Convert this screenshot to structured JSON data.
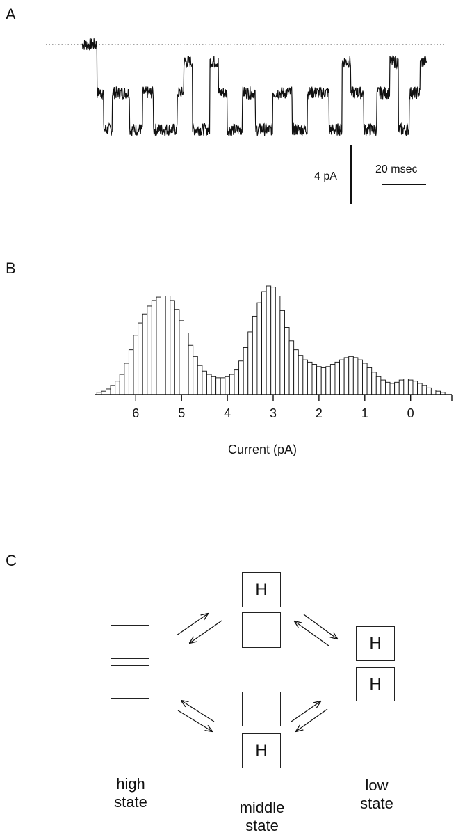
{
  "panels": {
    "a": {
      "label": "A",
      "scalebar_current": "4 pA",
      "scalebar_time": "20 msec"
    },
    "b": {
      "label": "B"
    },
    "c": {
      "label": "C"
    }
  },
  "trace": {
    "levels_pA": [
      0,
      -4.2,
      -7.4
    ],
    "sequence": [
      {
        "level": 0,
        "duration_ms": 7
      },
      {
        "level": -4.2,
        "duration_ms": 3
      },
      {
        "level": -7.4,
        "duration_ms": 4
      },
      {
        "level": -4.2,
        "duration_ms": 8
      },
      {
        "level": -7.4,
        "duration_ms": 6
      },
      {
        "level": -4.2,
        "duration_ms": 5
      },
      {
        "level": -7.4,
        "duration_ms": 11
      },
      {
        "level": -4.2,
        "duration_ms": 3
      },
      {
        "level": -1.5,
        "duration_ms": 4
      },
      {
        "level": -7.4,
        "duration_ms": 8
      },
      {
        "level": -1.5,
        "duration_ms": 4
      },
      {
        "level": -4.2,
        "duration_ms": 4
      },
      {
        "level": -7.4,
        "duration_ms": 7
      },
      {
        "level": -4.2,
        "duration_ms": 6
      },
      {
        "level": -7.4,
        "duration_ms": 8
      },
      {
        "level": -4.2,
        "duration_ms": 9
      },
      {
        "level": -7.4,
        "duration_ms": 7
      },
      {
        "level": -4.2,
        "duration_ms": 10
      },
      {
        "level": -7.4,
        "duration_ms": 6
      },
      {
        "level": -1.5,
        "duration_ms": 4
      },
      {
        "level": -4.2,
        "duration_ms": 6
      },
      {
        "level": -7.4,
        "duration_ms": 6
      },
      {
        "level": -4.2,
        "duration_ms": 6
      },
      {
        "level": -1.5,
        "duration_ms": 4
      },
      {
        "level": -7.4,
        "duration_ms": 5
      },
      {
        "level": -4.2,
        "duration_ms": 5
      },
      {
        "level": -1.5,
        "duration_ms": 3
      }
    ]
  },
  "chart_data": {
    "type": "bar",
    "xlabel": "Current (pA)",
    "x_ticks": [
      "6",
      "5",
      "4",
      "3",
      "2",
      "1",
      "0"
    ],
    "xlim": [
      6.9,
      -0.9
    ],
    "x_reversed": true,
    "bin_width_pA": 0.1,
    "x": [
      6.8,
      6.7,
      6.6,
      6.5,
      6.4,
      6.3,
      6.2,
      6.1,
      6.0,
      5.9,
      5.8,
      5.7,
      5.6,
      5.5,
      5.4,
      5.3,
      5.2,
      5.1,
      5.0,
      4.9,
      4.8,
      4.7,
      4.6,
      4.5,
      4.4,
      4.3,
      4.2,
      4.1,
      4.0,
      3.9,
      3.8,
      3.7,
      3.6,
      3.5,
      3.4,
      3.3,
      3.2,
      3.1,
      3.0,
      2.9,
      2.8,
      2.7,
      2.6,
      2.5,
      2.4,
      2.3,
      2.2,
      2.1,
      2.0,
      1.9,
      1.8,
      1.7,
      1.6,
      1.5,
      1.4,
      1.3,
      1.2,
      1.1,
      1.0,
      0.9,
      0.8,
      0.7,
      0.6,
      0.5,
      0.4,
      0.3,
      0.2,
      0.1,
      0.0,
      -0.1,
      -0.2,
      -0.3,
      -0.4,
      -0.5,
      -0.6,
      -0.7
    ],
    "values": [
      2,
      3,
      5,
      8,
      12,
      18,
      28,
      40,
      53,
      64,
      72,
      79,
      84,
      87,
      88,
      88,
      84,
      76,
      66,
      55,
      44,
      34,
      26,
      21,
      18,
      16,
      15,
      15,
      16,
      18,
      22,
      30,
      42,
      56,
      70,
      82,
      92,
      97,
      96,
      88,
      75,
      60,
      48,
      40,
      35,
      31,
      29,
      27,
      25,
      24,
      25,
      27,
      29,
      31,
      33,
      34,
      33,
      31,
      28,
      24,
      20,
      16,
      13,
      11,
      10,
      11,
      13,
      14,
      13,
      12,
      10,
      8,
      6,
      4,
      3,
      2
    ]
  },
  "scheme": {
    "h": "H",
    "states": {
      "high": "high\nstate",
      "middle": "middle\nstate",
      "low": "low\nstate"
    }
  }
}
